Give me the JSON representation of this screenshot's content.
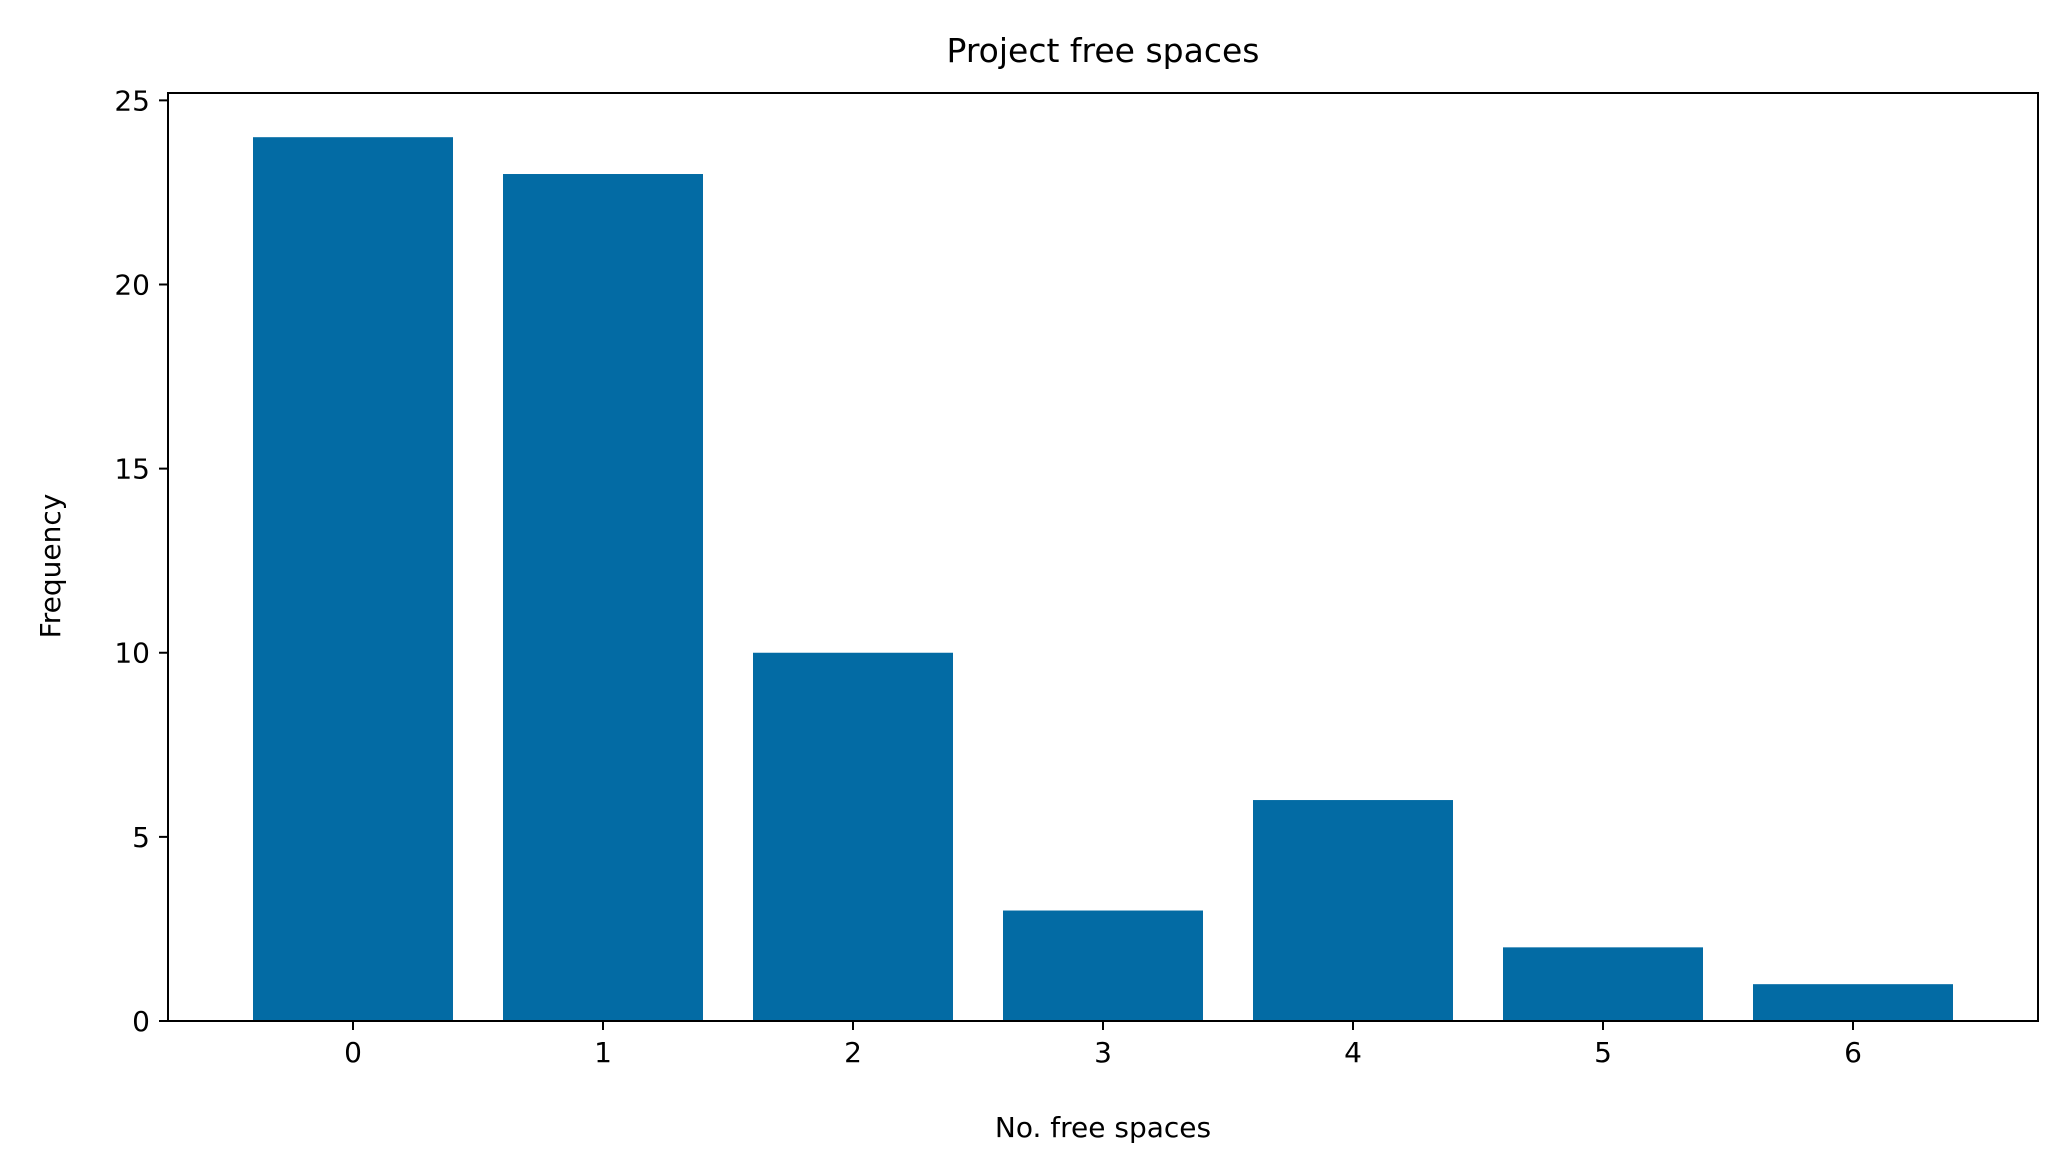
{
  "chart_data": {
    "type": "bar",
    "title": "Project free spaces",
    "xlabel": "No. free spaces",
    "ylabel": "Frequency",
    "categories": [
      "0",
      "1",
      "2",
      "3",
      "4",
      "5",
      "6"
    ],
    "values": [
      24,
      23,
      10,
      3,
      6,
      2,
      1
    ],
    "x_ticks": [
      "0",
      "1",
      "2",
      "3",
      "4",
      "5",
      "6"
    ],
    "y_ticks": [
      "0",
      "5",
      "10",
      "15",
      "20",
      "25"
    ],
    "ylim": [
      0,
      25.2
    ],
    "xlim": [
      -0.74,
      6.74
    ],
    "grid": false,
    "legend": "none",
    "bar_color": "#036ba4"
  }
}
